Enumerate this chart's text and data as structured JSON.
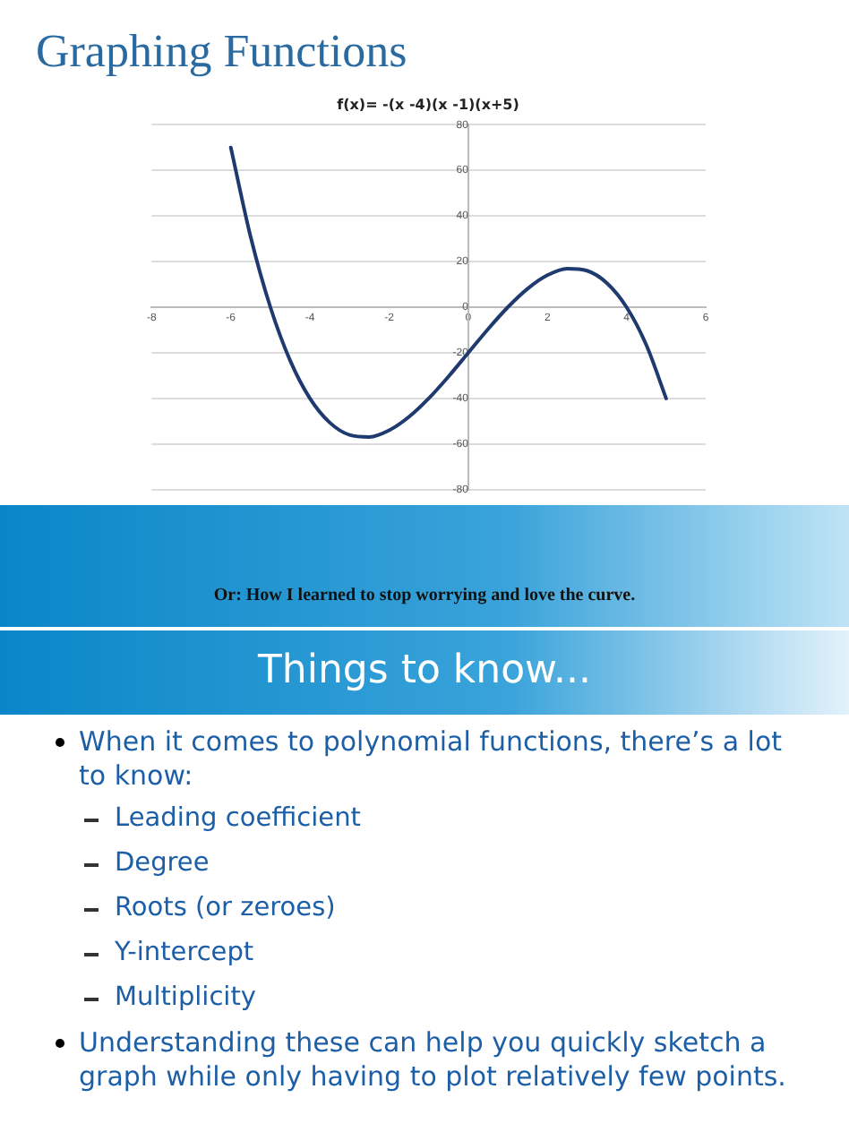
{
  "chart_data": {
    "type": "line",
    "title": "Graphing Functions",
    "subtitle": "f(x)= -(x -4)(x -1)(x+5)",
    "x": [
      -6,
      -5.5,
      -5,
      -4.5,
      -4,
      -3.5,
      -3,
      -2.5,
      -2,
      -1.5,
      -1,
      -0.5,
      0,
      0.5,
      1,
      1.5,
      2,
      2.5,
      3,
      3.5,
      4,
      4.5,
      5
    ],
    "series": [
      {
        "color": "#1f3a6e",
        "values": [
          70,
          30.9,
          0,
          -23.4,
          -40,
          -50.6,
          -56,
          -56.9,
          -54,
          -48.1,
          -40,
          -30.4,
          -20,
          -9.6,
          0,
          8.1,
          14,
          16.9,
          16,
          10.6,
          0,
          -16.6,
          -40
        ]
      }
    ],
    "xlim": [
      -8,
      6
    ],
    "xticks": [
      -8,
      -6,
      -4,
      -2,
      0,
      2,
      4,
      6
    ],
    "ylim": [
      -80,
      80
    ],
    "yticks": [
      -80,
      -60,
      -40,
      -20,
      0,
      20,
      40,
      60,
      80
    ],
    "grid": "y",
    "legend": false,
    "marker": "none",
    "line_style": "solid",
    "annotations": [
      "Or: How I learned to stop worrying and love the curve.",
      "Things to know...",
      "When it comes to polynomial functions, there’s a lot to know:",
      "Leading coefficient",
      "Degree",
      "Roots (or zeroes)",
      "Y-intercept",
      "Multiplicity",
      "Understanding these can help you quickly sketch a graph while only having to plot relatively few points."
    ]
  }
}
